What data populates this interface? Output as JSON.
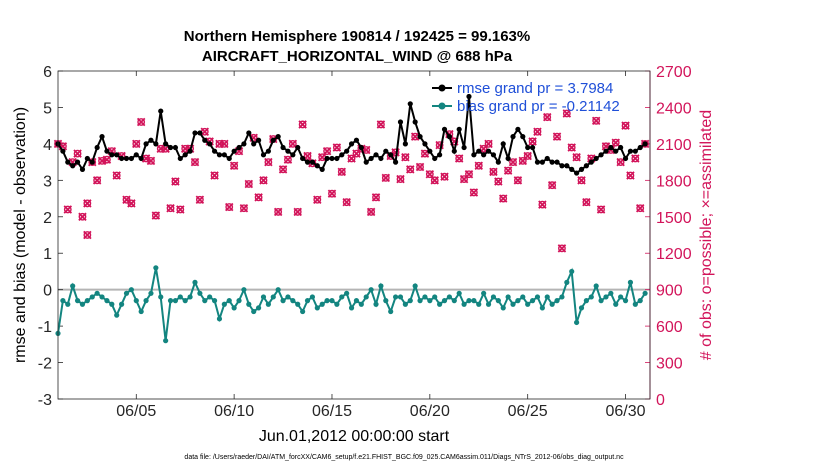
{
  "chart_data": {
    "type": "line",
    "title": "Northern Hemisphere 190814 / 192425 = 99.163%",
    "subtitle": "AIRCRAFT_HORIZONTAL_WIND @ 688 hPa",
    "xlabel": "Jun.01,2012 00:00:00 start",
    "ylabel_left": "rmse and bias (model - observation)",
    "ylabel_right": "# of obs: o=possible; ×=assimilated",
    "footer": "data file: /Users/raeder/DAI/ATM_forcXX/CAM6_setup/f.e21.FHIST_BGC.f09_025.CAM6assim.011/Diags_NTrS_2012-06/obs_diag_output.nc",
    "xlim": [
      1.0,
      31.25
    ],
    "ylim_left": [
      -3,
      6
    ],
    "ylim_right": [
      0,
      2700
    ],
    "x_ticks": [
      5,
      10,
      15,
      20,
      25,
      30
    ],
    "x_tick_labels": [
      "06/05",
      "06/10",
      "06/15",
      "06/20",
      "06/25",
      "06/30"
    ],
    "y_ticks_left": [
      -3,
      -2,
      -1,
      0,
      1,
      2,
      3,
      4,
      5,
      6
    ],
    "y_ticks_right": [
      0,
      300,
      600,
      900,
      1200,
      1500,
      1800,
      2100,
      2400,
      2700
    ],
    "legend": [
      "rmse grand pr = 3.7984",
      "bias grand pr = -0.21142"
    ],
    "legend_position": "top-right",
    "colors": {
      "rmse": "#000000",
      "bias": "#138580",
      "obs": "#d2145a",
      "zero_line": "#b4b4b4",
      "right_axis": "#d2145a",
      "legend_text": "#1f4fd8"
    },
    "series": [
      {
        "name": "rmse",
        "x": [
          1.0,
          1.25,
          1.5,
          1.75,
          2.0,
          2.25,
          2.5,
          2.75,
          3.0,
          3.25,
          3.5,
          3.75,
          4.0,
          4.25,
          4.5,
          4.75,
          5.0,
          5.25,
          5.5,
          5.75,
          6.0,
          6.25,
          6.5,
          6.75,
          7.0,
          7.25,
          7.5,
          7.75,
          8.0,
          8.25,
          8.5,
          8.75,
          9.0,
          9.25,
          9.5,
          9.75,
          10.0,
          10.25,
          10.5,
          10.75,
          11.0,
          11.25,
          11.5,
          11.75,
          12.0,
          12.25,
          12.5,
          12.75,
          13.0,
          13.25,
          13.5,
          13.75,
          14.0,
          14.25,
          14.5,
          14.75,
          15.0,
          15.25,
          15.5,
          15.75,
          16.0,
          16.25,
          16.5,
          16.75,
          17.0,
          17.25,
          17.5,
          17.75,
          18.0,
          18.25,
          18.5,
          18.75,
          19.0,
          19.25,
          19.5,
          19.75,
          20.0,
          20.25,
          20.5,
          20.75,
          21.0,
          21.25,
          21.5,
          21.75,
          22.0,
          22.25,
          22.5,
          22.75,
          23.0,
          23.25,
          23.5,
          23.75,
          24.0,
          24.25,
          24.5,
          24.75,
          25.0,
          25.25,
          25.5,
          25.75,
          26.0,
          26.25,
          26.5,
          26.75,
          27.0,
          27.25,
          27.5,
          27.75,
          28.0,
          28.25,
          28.5,
          28.75,
          29.0,
          29.25,
          29.5,
          29.75,
          30.0,
          30.25,
          30.5,
          30.75,
          31.0
        ],
        "values": [
          4.0,
          3.8,
          3.5,
          3.4,
          3.5,
          3.3,
          3.6,
          3.5,
          3.9,
          4.2,
          3.8,
          3.7,
          3.7,
          3.6,
          3.6,
          3.6,
          3.7,
          3.6,
          4.0,
          4.1,
          4.0,
          4.9,
          4.0,
          3.9,
          3.9,
          3.6,
          3.7,
          3.8,
          4.3,
          4.3,
          4.1,
          4.0,
          3.8,
          3.7,
          3.7,
          3.6,
          3.8,
          3.9,
          4.0,
          4.3,
          4.0,
          4.1,
          3.7,
          3.8,
          4.1,
          4.2,
          3.9,
          3.8,
          3.7,
          3.9,
          3.6,
          3.5,
          3.5,
          3.4,
          3.3,
          3.6,
          3.6,
          3.6,
          3.7,
          3.8,
          4.0,
          4.1,
          3.9,
          3.5,
          3.6,
          3.7,
          3.6,
          3.8,
          3.7,
          3.5,
          4.6,
          4.0,
          5.1,
          4.6,
          4.2,
          4.0,
          3.8,
          3.6,
          3.7,
          4.4,
          4.2,
          3.8,
          4.4,
          3.9,
          5.3,
          3.7,
          3.8,
          3.7,
          3.8,
          3.7,
          3.5,
          4.0,
          3.6,
          4.2,
          4.4,
          4.2,
          3.9,
          3.9,
          3.5,
          3.5,
          3.6,
          3.5,
          3.5,
          3.4,
          3.4,
          3.3,
          3.2,
          3.3,
          3.4,
          3.5,
          3.6,
          3.7,
          3.8,
          3.9,
          3.8,
          3.9,
          3.6,
          3.8,
          3.8,
          3.9,
          4.0
        ]
      },
      {
        "name": "bias",
        "x": [
          1.0,
          1.25,
          1.5,
          1.75,
          2.0,
          2.25,
          2.5,
          2.75,
          3.0,
          3.25,
          3.5,
          3.75,
          4.0,
          4.25,
          4.5,
          4.75,
          5.0,
          5.25,
          5.5,
          5.75,
          6.0,
          6.25,
          6.5,
          6.75,
          7.0,
          7.25,
          7.5,
          7.75,
          8.0,
          8.25,
          8.5,
          8.75,
          9.0,
          9.25,
          9.5,
          9.75,
          10.0,
          10.25,
          10.5,
          10.75,
          11.0,
          11.25,
          11.5,
          11.75,
          12.0,
          12.25,
          12.5,
          12.75,
          13.0,
          13.25,
          13.5,
          13.75,
          14.0,
          14.25,
          14.5,
          14.75,
          15.0,
          15.25,
          15.5,
          15.75,
          16.0,
          16.25,
          16.5,
          16.75,
          17.0,
          17.25,
          17.5,
          17.75,
          18.0,
          18.25,
          18.5,
          18.75,
          19.0,
          19.25,
          19.5,
          19.75,
          20.0,
          20.25,
          20.5,
          20.75,
          21.0,
          21.25,
          21.5,
          21.75,
          22.0,
          22.25,
          22.5,
          22.75,
          23.0,
          23.25,
          23.5,
          23.75,
          24.0,
          24.25,
          24.5,
          24.75,
          25.0,
          25.25,
          25.5,
          25.75,
          26.0,
          26.25,
          26.5,
          26.75,
          27.0,
          27.25,
          27.5,
          27.75,
          28.0,
          28.25,
          28.5,
          28.75,
          29.0,
          29.25,
          29.5,
          29.75,
          30.0,
          30.25,
          30.5,
          30.75,
          31.0
        ],
        "values": [
          -1.2,
          -0.3,
          -0.4,
          0.1,
          -0.3,
          -0.4,
          -0.3,
          -0.2,
          -0.1,
          -0.2,
          -0.3,
          -0.4,
          -0.7,
          -0.4,
          -0.1,
          0.0,
          -0.3,
          -0.6,
          -0.3,
          -0.1,
          0.6,
          -0.2,
          -1.4,
          -0.3,
          -0.3,
          -0.2,
          -0.3,
          -0.2,
          0.2,
          -0.1,
          -0.3,
          -0.2,
          -0.3,
          -0.8,
          -0.4,
          -0.3,
          -0.5,
          -0.3,
          0.0,
          -0.4,
          -0.6,
          -0.5,
          -0.2,
          -0.4,
          -0.2,
          0.0,
          -0.3,
          -0.2,
          -0.3,
          -0.4,
          -0.6,
          -0.3,
          -0.2,
          -0.5,
          -0.4,
          -0.3,
          -0.3,
          -0.4,
          -0.2,
          -0.1,
          -0.5,
          -0.3,
          -0.4,
          -0.2,
          0.0,
          -0.4,
          0.1,
          -0.3,
          -0.6,
          -0.2,
          -0.2,
          -0.4,
          -0.3,
          0.1,
          -0.3,
          -0.2,
          -0.3,
          -0.2,
          -0.4,
          -0.3,
          -0.2,
          -0.3,
          -0.1,
          -0.4,
          -0.3,
          -0.3,
          -0.4,
          -0.1,
          -0.4,
          -0.2,
          -0.3,
          -0.5,
          -0.2,
          -0.4,
          -0.3,
          -0.2,
          -0.4,
          -0.3,
          -0.2,
          -0.5,
          -0.2,
          -0.4,
          -0.3,
          -0.2,
          0.2,
          0.5,
          -0.9,
          -0.5,
          -0.3,
          -0.2,
          0.1,
          -0.3,
          -0.2,
          -0.1,
          -0.4,
          -0.2,
          -0.3,
          0.2,
          -0.4,
          -0.3,
          -0.1
        ]
      },
      {
        "name": "obs",
        "axis": "right",
        "x": [
          1.0,
          1.5,
          2.0,
          2.25,
          2.5,
          2.75,
          3.0,
          3.25,
          3.75,
          4.25,
          4.75,
          5.0,
          5.5,
          5.75,
          6.25,
          6.75,
          7.25,
          7.75,
          8.25,
          8.75,
          9.25,
          9.75,
          10.25,
          10.75,
          11.25,
          11.75,
          12.25,
          12.75,
          13.25,
          13.75,
          14.25,
          14.75,
          15.25,
          15.75,
          16.25,
          16.75,
          17.25,
          17.75,
          18.25,
          18.75,
          19.25,
          19.75,
          20.25,
          20.75,
          21.25,
          21.75,
          22.25,
          22.75,
          23.25,
          23.75,
          24.25,
          24.75,
          25.25,
          25.75,
          26.25,
          26.75,
          27.25,
          27.75,
          28.25,
          28.75,
          29.25,
          29.75,
          30.25,
          30.75,
          31.0,
          1.25,
          1.75,
          2.5,
          3.5,
          4.0,
          4.5,
          5.25,
          6.0,
          6.5,
          7.0,
          7.5,
          8.0,
          8.5,
          9.0,
          9.5,
          10.0,
          10.5,
          11.0,
          11.5,
          12.0,
          12.5,
          13.0,
          13.5,
          14.0,
          14.5,
          15.0,
          15.5,
          16.0,
          16.5,
          17.0,
          17.5,
          18.0,
          18.5,
          19.0,
          19.5,
          20.0,
          20.5,
          21.0,
          21.5,
          22.0,
          22.5,
          23.0,
          23.5,
          24.0,
          24.5,
          25.0,
          25.5,
          26.0,
          26.5,
          27.0,
          27.5,
          28.0,
          28.5,
          29.0,
          29.5,
          30.0,
          30.5
        ],
        "values": [
          2100,
          1560,
          2020,
          1500,
          1350,
          1950,
          1800,
          1960,
          2040,
          2000,
          1610,
          2100,
          1980,
          1960,
          2060,
          1570,
          1560,
          2060,
          1640,
          2120,
          2100,
          1580,
          2040,
          1770,
          1660,
          1950,
          1540,
          1970,
          1540,
          2000,
          1640,
          2040,
          2070,
          1620,
          2020,
          2050,
          1660,
          1820,
          2030,
          1990,
          2160,
          2020,
          1800,
          1830,
          2120,
          1810,
          1700,
          2060,
          1870,
          1650,
          1950,
          1960,
          2120,
          1600,
          1760,
          1240,
          2070,
          1800,
          1980,
          1560,
          2050,
          1950,
          1840,
          1570,
          2100,
          2080,
          1950,
          1610,
          1970,
          1840,
          1640,
          2280,
          1510,
          2060,
          1790,
          2060,
          1950,
          2200,
          1840,
          2100,
          1920,
          1570,
          2150,
          1800,
          2140,
          1890,
          2100,
          2260,
          1940,
          1990,
          1690,
          1870,
          1980,
          2060,
          1540,
          2260,
          2000,
          1810,
          1890,
          1910,
          1850,
          2090,
          2180,
          1980,
          1850,
          1920,
          2100,
          1790,
          1880,
          1800,
          2000,
          2200,
          2320,
          2160,
          2350,
          1990,
          1620,
          2290,
          2080,
          2110,
          2250,
          1980
        ]
      }
    ]
  }
}
